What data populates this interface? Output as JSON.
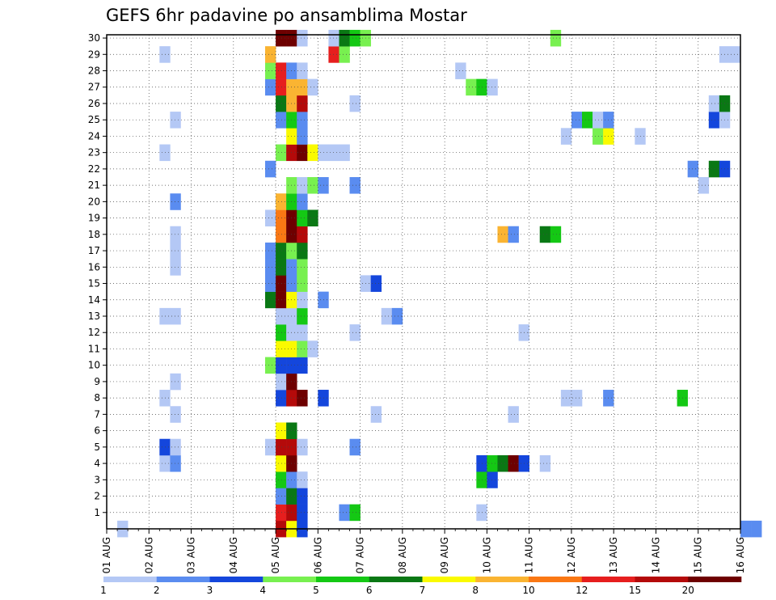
{
  "chart_data": {
    "type": "heatmap",
    "title": "GEFS 6hr padavine po ansamblima Mostar",
    "x_axis": {
      "unit": "days",
      "range": [
        0,
        15
      ],
      "tick_labels": [
        "01 AUG",
        "02 AUG",
        "03 AUG",
        "04 AUG",
        "05 AUG",
        "06 AUG",
        "07 AUG",
        "08 AUG",
        "09 AUG",
        "10 AUG",
        "11 AUG",
        "12 AUG",
        "13 AUG",
        "14 AUG",
        "15 AUG",
        "16 AUG"
      ],
      "steps_per_day": 4
    },
    "y_axis": {
      "unit": "ensemble member",
      "range": [
        0,
        30
      ],
      "tick_labels": [
        "1",
        "2",
        "3",
        "4",
        "5",
        "6",
        "7",
        "8",
        "9",
        "10",
        "11",
        "12",
        "13",
        "14",
        "15",
        "16",
        "17",
        "18",
        "19",
        "20",
        "21",
        "22",
        "23",
        "24",
        "25",
        "26",
        "27",
        "28",
        "29",
        "30"
      ]
    },
    "grid": true,
    "legend": {
      "placement": "bottom",
      "labels": [
        "1",
        "2",
        "3",
        "4",
        "5",
        "6",
        "7",
        "8",
        "10",
        "12",
        "15",
        "20"
      ],
      "colors": [
        "#b4c8f5",
        "#5a8cf0",
        "#1446dc",
        "#78f050",
        "#14c814",
        "#0a7814",
        "#fafa00",
        "#fab432",
        "#fa7814",
        "#e61e1e",
        "#b40a0a",
        "#6e0000"
      ]
    },
    "cells": [
      [
        1,
        0,
        1
      ],
      [
        16,
        0,
        11
      ],
      [
        17,
        0,
        7
      ],
      [
        18,
        0,
        3
      ],
      [
        60,
        0,
        2
      ],
      [
        61,
        0,
        2
      ],
      [
        16,
        1,
        10
      ],
      [
        17,
        1,
        11
      ],
      [
        18,
        1,
        3
      ],
      [
        22,
        1,
        2
      ],
      [
        23,
        1,
        5
      ],
      [
        35,
        1,
        1
      ],
      [
        16,
        2,
        2
      ],
      [
        17,
        2,
        6
      ],
      [
        18,
        2,
        3
      ],
      [
        16,
        3,
        5
      ],
      [
        17,
        3,
        2
      ],
      [
        18,
        3,
        1
      ],
      [
        35,
        3,
        5
      ],
      [
        36,
        3,
        3
      ],
      [
        5,
        4,
        1
      ],
      [
        6,
        4,
        2
      ],
      [
        16,
        4,
        7
      ],
      [
        17,
        4,
        12
      ],
      [
        35,
        4,
        3
      ],
      [
        36,
        4,
        5
      ],
      [
        37,
        4,
        6
      ],
      [
        38,
        4,
        12
      ],
      [
        39,
        4,
        3
      ],
      [
        41,
        4,
        1
      ],
      [
        5,
        5,
        3
      ],
      [
        6,
        5,
        1
      ],
      [
        15,
        5,
        1
      ],
      [
        16,
        5,
        11
      ],
      [
        17,
        5,
        11
      ],
      [
        18,
        5,
        1
      ],
      [
        23,
        5,
        2
      ],
      [
        16,
        6,
        7
      ],
      [
        17,
        6,
        6
      ],
      [
        6,
        7,
        1
      ],
      [
        25,
        7,
        1
      ],
      [
        38,
        7,
        1
      ],
      [
        5,
        8,
        1
      ],
      [
        16,
        8,
        3
      ],
      [
        17,
        8,
        11
      ],
      [
        18,
        8,
        12
      ],
      [
        20,
        8,
        3
      ],
      [
        43,
        8,
        1
      ],
      [
        44,
        8,
        1
      ],
      [
        47,
        8,
        2
      ],
      [
        54,
        8,
        5
      ],
      [
        6,
        9,
        1
      ],
      [
        16,
        9,
        1
      ],
      [
        17,
        9,
        12
      ],
      [
        15,
        10,
        4
      ],
      [
        16,
        10,
        3
      ],
      [
        17,
        10,
        3
      ],
      [
        18,
        10,
        3
      ],
      [
        16,
        11,
        7
      ],
      [
        17,
        11,
        7
      ],
      [
        18,
        11,
        4
      ],
      [
        19,
        11,
        1
      ],
      [
        16,
        12,
        5
      ],
      [
        17,
        12,
        1
      ],
      [
        18,
        12,
        1
      ],
      [
        23,
        12,
        1
      ],
      [
        39,
        12,
        1
      ],
      [
        5,
        13,
        1
      ],
      [
        6,
        13,
        1
      ],
      [
        16,
        13,
        1
      ],
      [
        17,
        13,
        1
      ],
      [
        18,
        13,
        5
      ],
      [
        26,
        13,
        1
      ],
      [
        27,
        13,
        2
      ],
      [
        15,
        14,
        6
      ],
      [
        16,
        14,
        12
      ],
      [
        17,
        14,
        7
      ],
      [
        18,
        14,
        1
      ],
      [
        20,
        14,
        2
      ],
      [
        15,
        15,
        2
      ],
      [
        16,
        15,
        12
      ],
      [
        17,
        15,
        2
      ],
      [
        18,
        15,
        4
      ],
      [
        24,
        15,
        1
      ],
      [
        25,
        15,
        3
      ],
      [
        6,
        16,
        1
      ],
      [
        15,
        16,
        2
      ],
      [
        16,
        16,
        6
      ],
      [
        17,
        16,
        2
      ],
      [
        18,
        16,
        4
      ],
      [
        6,
        17,
        1
      ],
      [
        15,
        17,
        2
      ],
      [
        16,
        17,
        6
      ],
      [
        17,
        17,
        4
      ],
      [
        18,
        17,
        6
      ],
      [
        6,
        18,
        1
      ],
      [
        16,
        18,
        9
      ],
      [
        17,
        18,
        12
      ],
      [
        18,
        18,
        11
      ],
      [
        37,
        18,
        8
      ],
      [
        38,
        18,
        2
      ],
      [
        41,
        18,
        6
      ],
      [
        42,
        18,
        5
      ],
      [
        15,
        19,
        1
      ],
      [
        16,
        19,
        9
      ],
      [
        17,
        19,
        12
      ],
      [
        18,
        19,
        5
      ],
      [
        19,
        19,
        6
      ],
      [
        6,
        20,
        2
      ],
      [
        16,
        20,
        8
      ],
      [
        17,
        20,
        5
      ],
      [
        18,
        20,
        2
      ],
      [
        17,
        21,
        4
      ],
      [
        18,
        21,
        1
      ],
      [
        19,
        21,
        4
      ],
      [
        20,
        21,
        2
      ],
      [
        23,
        21,
        2
      ],
      [
        56,
        21,
        1
      ],
      [
        15,
        22,
        2
      ],
      [
        55,
        22,
        2
      ],
      [
        57,
        22,
        6
      ],
      [
        58,
        22,
        3
      ],
      [
        5,
        23,
        1
      ],
      [
        16,
        23,
        4
      ],
      [
        17,
        23,
        11
      ],
      [
        18,
        23,
        12
      ],
      [
        19,
        23,
        7
      ],
      [
        20,
        23,
        1
      ],
      [
        21,
        23,
        1
      ],
      [
        22,
        23,
        1
      ],
      [
        17,
        24,
        7
      ],
      [
        18,
        24,
        2
      ],
      [
        43,
        24,
        1
      ],
      [
        46,
        24,
        4
      ],
      [
        47,
        24,
        7
      ],
      [
        50,
        24,
        1
      ],
      [
        6,
        25,
        1
      ],
      [
        16,
        25,
        2
      ],
      [
        17,
        25,
        5
      ],
      [
        18,
        25,
        2
      ],
      [
        44,
        25,
        2
      ],
      [
        45,
        25,
        5
      ],
      [
        46,
        25,
        1
      ],
      [
        47,
        25,
        2
      ],
      [
        57,
        25,
        3
      ],
      [
        58,
        25,
        1
      ],
      [
        16,
        26,
        6
      ],
      [
        17,
        26,
        8
      ],
      [
        18,
        26,
        11
      ],
      [
        23,
        26,
        1
      ],
      [
        57,
        26,
        1
      ],
      [
        58,
        26,
        6
      ],
      [
        15,
        27,
        2
      ],
      [
        16,
        27,
        10
      ],
      [
        17,
        27,
        8
      ],
      [
        18,
        27,
        8
      ],
      [
        19,
        27,
        1
      ],
      [
        34,
        27,
        4
      ],
      [
        35,
        27,
        5
      ],
      [
        36,
        27,
        1
      ],
      [
        15,
        28,
        4
      ],
      [
        16,
        28,
        10
      ],
      [
        17,
        28,
        2
      ],
      [
        18,
        28,
        1
      ],
      [
        33,
        28,
        1
      ],
      [
        5,
        29,
        1
      ],
      [
        15,
        29,
        8
      ],
      [
        21,
        29,
        10
      ],
      [
        22,
        29,
        4
      ],
      [
        58,
        29,
        1
      ],
      [
        59,
        29,
        1
      ],
      [
        16,
        30,
        12
      ],
      [
        17,
        30,
        12
      ],
      [
        18,
        30,
        1
      ],
      [
        21,
        30,
        1
      ],
      [
        22,
        30,
        6
      ],
      [
        23,
        30,
        5
      ],
      [
        24,
        30,
        4
      ],
      [
        42,
        30,
        4
      ]
    ]
  }
}
